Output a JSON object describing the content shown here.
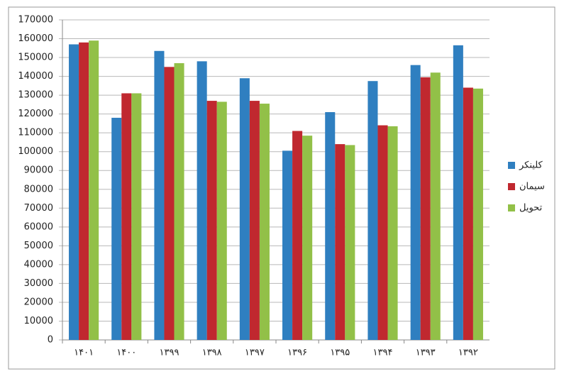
{
  "chart_data": {
    "type": "bar",
    "categories": [
      "۱۴۰۱",
      "۱۴۰۰",
      "۱۳۹۹",
      "۱۳۹۸",
      "۱۳۹۷",
      "۱۳۹۶",
      "۱۳۹۵",
      "۱۳۹۴",
      "۱۳۹۳",
      "۱۳۹۲"
    ],
    "series": [
      {
        "name": "کلینکر",
        "color": "#2f7fc0",
        "values": [
          157000,
          118000,
          153500,
          148000,
          139000,
          100500,
          121000,
          137500,
          146000,
          156500
        ]
      },
      {
        "name": "سیمان",
        "color": "#c0282f",
        "values": [
          158000,
          131000,
          145000,
          127000,
          127000,
          111000,
          104000,
          114000,
          139500,
          134000
        ]
      },
      {
        "name": "تحویل",
        "color": "#92c048",
        "values": [
          159000,
          131000,
          147000,
          126500,
          125500,
          108500,
          103500,
          113500,
          142000,
          133500
        ]
      }
    ],
    "ylim": [
      0,
      170000
    ],
    "yticks": [
      0,
      10000,
      20000,
      30000,
      40000,
      50000,
      60000,
      70000,
      80000,
      90000,
      100000,
      110000,
      120000,
      130000,
      140000,
      150000,
      160000,
      170000
    ],
    "grid": true,
    "legend": "right"
  }
}
